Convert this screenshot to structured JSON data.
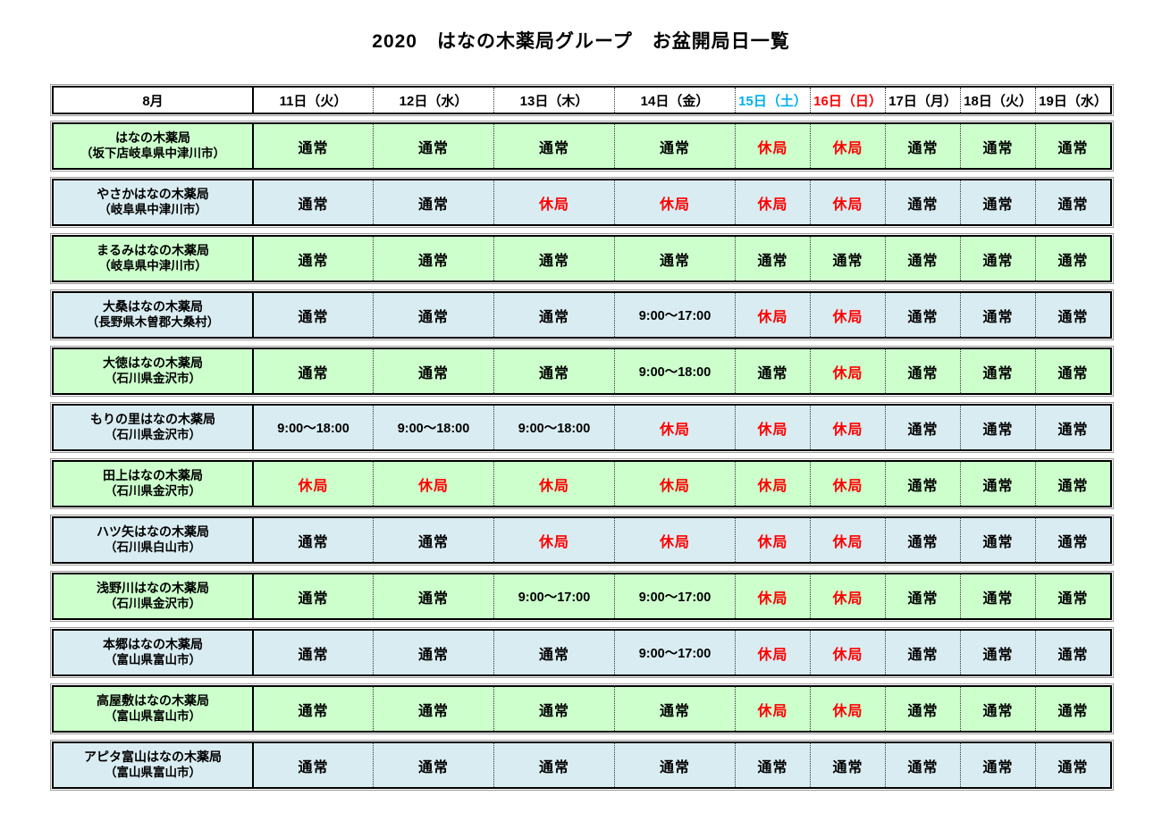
{
  "title": "2020　はなの木薬局グループ　お盆開局日一覧",
  "colors": {
    "row_green": "#CCFFCC",
    "row_blue": "#D9ECF2",
    "closed_red": "#FF0000",
    "saturday_blue": "#00B0F0",
    "sunday_red": "#FF0000",
    "text_black": "#000000"
  },
  "table": {
    "month_label": "8月",
    "legend": {
      "open": "通常",
      "closed": "休局"
    },
    "date_columns": [
      {
        "label": "11日（火）",
        "color": "#000000"
      },
      {
        "label": "12日（水）",
        "color": "#000000"
      },
      {
        "label": "13日（木）",
        "color": "#000000"
      },
      {
        "label": "14日（金）",
        "color": "#000000"
      },
      {
        "label": "15日（土）",
        "color": "#00B0F0"
      },
      {
        "label": "16日（日）",
        "color": "#FF0000"
      },
      {
        "label": "17日（月）",
        "color": "#000000"
      },
      {
        "label": "18日（火）",
        "color": "#000000"
      },
      {
        "label": "19日（水）",
        "color": "#000000"
      }
    ],
    "rows": [
      {
        "name": "はなの木薬局",
        "location": "（坂下店岐阜県中津川市）",
        "bg": "#CCFFCC",
        "values": [
          "通常",
          "通常",
          "通常",
          "通常",
          "休局",
          "休局",
          "通常",
          "通常",
          "通常"
        ]
      },
      {
        "name": "やさかはなの木薬局",
        "location": "（岐阜県中津川市）",
        "bg": "#D9ECF2",
        "values": [
          "通常",
          "通常",
          "休局",
          "休局",
          "休局",
          "休局",
          "通常",
          "通常",
          "通常"
        ]
      },
      {
        "name": "まるみはなの木薬局",
        "location": "（岐阜県中津川市）",
        "bg": "#CCFFCC",
        "values": [
          "通常",
          "通常",
          "通常",
          "通常",
          "通常",
          "通常",
          "通常",
          "通常",
          "通常"
        ]
      },
      {
        "name": "大桑はなの木薬局",
        "location": "（長野県木曽郡大桑村）",
        "bg": "#D9ECF2",
        "values": [
          "通常",
          "通常",
          "通常",
          "9:00〜17:00",
          "休局",
          "休局",
          "通常",
          "通常",
          "通常"
        ]
      },
      {
        "name": "大徳はなの木薬局",
        "location": "（石川県金沢市）",
        "bg": "#CCFFCC",
        "values": [
          "通常",
          "通常",
          "通常",
          "9:00〜18:00",
          "通常",
          "休局",
          "通常",
          "通常",
          "通常"
        ]
      },
      {
        "name": "もりの里はなの木薬局",
        "location": "（石川県金沢市）",
        "bg": "#D9ECF2",
        "values": [
          "9:00〜18:00",
          "9:00〜18:00",
          "9:00〜18:00",
          "休局",
          "休局",
          "休局",
          "通常",
          "通常",
          "通常"
        ]
      },
      {
        "name": "田上はなの木薬局",
        "location": "（石川県金沢市）",
        "bg": "#CCFFCC",
        "values": [
          "休局",
          "休局",
          "休局",
          "休局",
          "休局",
          "休局",
          "通常",
          "通常",
          "通常"
        ]
      },
      {
        "name": "ハツ矢はなの木薬局",
        "location": "（石川県白山市）",
        "bg": "#D9ECF2",
        "values": [
          "通常",
          "通常",
          "休局",
          "休局",
          "休局",
          "休局",
          "通常",
          "通常",
          "通常"
        ]
      },
      {
        "name": "浅野川はなの木薬局",
        "location": "（石川県金沢市）",
        "bg": "#CCFFCC",
        "values": [
          "通常",
          "通常",
          "9:00〜17:00",
          "9:00〜17:00",
          "休局",
          "休局",
          "通常",
          "通常",
          "通常"
        ]
      },
      {
        "name": "本郷はなの木薬局",
        "location": "（富山県富山市）",
        "bg": "#D9ECF2",
        "values": [
          "通常",
          "通常",
          "通常",
          "9:00〜17:00",
          "休局",
          "休局",
          "通常",
          "通常",
          "通常"
        ]
      },
      {
        "name": "高屋敷はなの木薬局",
        "location": "（富山県富山市）",
        "bg": "#CCFFCC",
        "values": [
          "通常",
          "通常",
          "通常",
          "通常",
          "休局",
          "休局",
          "通常",
          "通常",
          "通常"
        ]
      },
      {
        "name": "アピタ富山はなの木薬局",
        "location": "（富山県富山市）",
        "bg": "#D9ECF2",
        "values": [
          "通常",
          "通常",
          "通常",
          "通常",
          "通常",
          "通常",
          "通常",
          "通常",
          "通常"
        ]
      }
    ]
  }
}
